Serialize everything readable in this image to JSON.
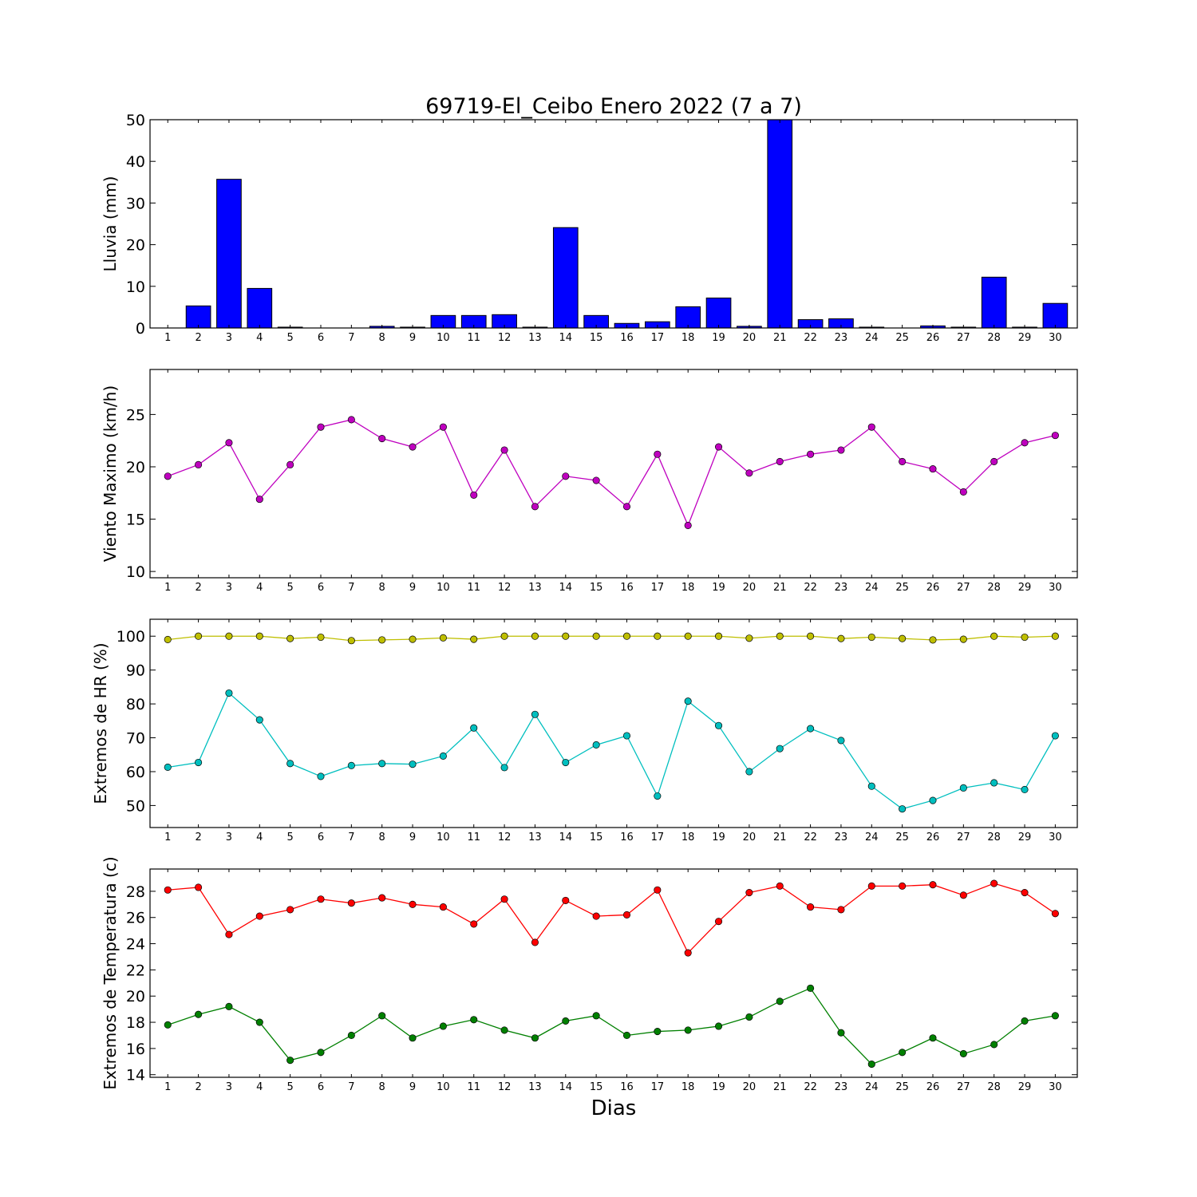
{
  "figure": {
    "title": "69719-El_Ceibo Enero 2022  (7 a 7)",
    "xlabel": "Dias"
  },
  "chart_data": [
    {
      "type": "bar",
      "ylabel": "Lluvia (mm)",
      "ylim": [
        0,
        50
      ],
      "yticks": [
        0,
        10,
        20,
        30,
        40,
        50
      ],
      "color": "#0000ff",
      "categories": [
        1,
        2,
        3,
        4,
        5,
        6,
        7,
        8,
        9,
        10,
        11,
        12,
        13,
        14,
        15,
        16,
        17,
        18,
        19,
        20,
        21,
        22,
        23,
        24,
        25,
        26,
        27,
        28,
        29,
        30
      ],
      "values": [
        0,
        5.3,
        35.7,
        9.5,
        0.2,
        0,
        0,
        0.4,
        0.2,
        3.0,
        3.0,
        3.2,
        0.2,
        24.1,
        3.0,
        1.1,
        1.5,
        5.1,
        7.2,
        0.4,
        50.0,
        2.0,
        2.2,
        0.2,
        0,
        0.5,
        0.2,
        12.2,
        0.2,
        5.9
      ],
      "grid": false
    },
    {
      "type": "line",
      "ylabel": "Viento Maximo (km/h)",
      "ylim": [
        9.4,
        29.3
      ],
      "yticks": [
        10,
        15,
        20,
        25
      ],
      "categories": [
        1,
        2,
        3,
        4,
        5,
        6,
        7,
        8,
        9,
        10,
        11,
        12,
        13,
        14,
        15,
        16,
        17,
        18,
        19,
        20,
        21,
        22,
        23,
        24,
        25,
        26,
        27,
        28,
        29,
        30
      ],
      "series": [
        {
          "color": "#bf00bf",
          "values": [
            19.1,
            20.2,
            22.3,
            16.9,
            20.2,
            23.8,
            24.5,
            22.7,
            21.9,
            23.8,
            17.3,
            21.6,
            16.2,
            19.1,
            18.7,
            16.2,
            21.2,
            14.4,
            21.9,
            19.4,
            20.5,
            21.2,
            21.6,
            23.8,
            20.5,
            19.8,
            17.6,
            20.5,
            22.3,
            23.0
          ]
        }
      ],
      "grid": false
    },
    {
      "type": "line",
      "ylabel": "Extremos de HR (%)",
      "ylim": [
        43.5,
        105
      ],
      "yticks": [
        50,
        60,
        70,
        80,
        90,
        100
      ],
      "categories": [
        1,
        2,
        3,
        4,
        5,
        6,
        7,
        8,
        9,
        10,
        11,
        12,
        13,
        14,
        15,
        16,
        17,
        18,
        19,
        20,
        21,
        22,
        23,
        24,
        25,
        26,
        27,
        28,
        29,
        30
      ],
      "series": [
        {
          "color": "#bfbf00",
          "values": [
            99,
            100,
            100,
            100,
            99.3,
            99.7,
            98.7,
            98.9,
            99.1,
            99.5,
            99.1,
            100,
            100,
            100,
            100,
            100,
            100,
            100,
            100,
            99.4,
            100,
            100,
            99.3,
            99.7,
            99.3,
            98.9,
            99.1,
            100,
            99.7,
            100
          ]
        },
        {
          "color": "#00bfbf",
          "values": [
            61.3,
            62.7,
            83.2,
            75.3,
            62.4,
            58.6,
            61.8,
            62.4,
            62.2,
            64.6,
            72.9,
            61.2,
            76.9,
            62.7,
            67.9,
            70.6,
            52.8,
            80.8,
            73.6,
            60.0,
            66.8,
            72.7,
            69.2,
            55.7,
            49.0,
            51.5,
            55.2,
            56.7,
            54.7,
            70.6
          ]
        }
      ],
      "grid": false
    },
    {
      "type": "line",
      "ylabel": "Extremos de Temperatura (c)",
      "ylim": [
        13.8,
        29.7
      ],
      "yticks": [
        14,
        16,
        18,
        20,
        22,
        24,
        26,
        28
      ],
      "categories": [
        1,
        2,
        3,
        4,
        5,
        6,
        7,
        8,
        9,
        10,
        11,
        12,
        13,
        14,
        15,
        16,
        17,
        18,
        19,
        20,
        21,
        22,
        23,
        24,
        25,
        26,
        27,
        28,
        29,
        30
      ],
      "series": [
        {
          "color": "#ff0000",
          "values": [
            28.1,
            28.3,
            24.7,
            26.1,
            26.6,
            27.4,
            27.1,
            27.5,
            27.0,
            26.8,
            25.5,
            27.4,
            24.1,
            27.3,
            26.1,
            26.2,
            28.1,
            23.3,
            25.7,
            27.9,
            28.4,
            26.8,
            26.6,
            28.4,
            28.4,
            28.5,
            27.7,
            28.6,
            27.9,
            26.3
          ]
        },
        {
          "color": "#008000",
          "values": [
            17.8,
            18.6,
            19.2,
            18.0,
            15.1,
            15.7,
            17.0,
            18.5,
            16.8,
            17.7,
            18.2,
            17.4,
            16.8,
            18.1,
            18.5,
            17.0,
            17.3,
            17.4,
            17.7,
            18.4,
            19.6,
            20.6,
            17.2,
            14.8,
            15.7,
            16.8,
            15.6,
            16.3,
            18.1,
            18.5
          ]
        }
      ],
      "grid": false
    }
  ]
}
